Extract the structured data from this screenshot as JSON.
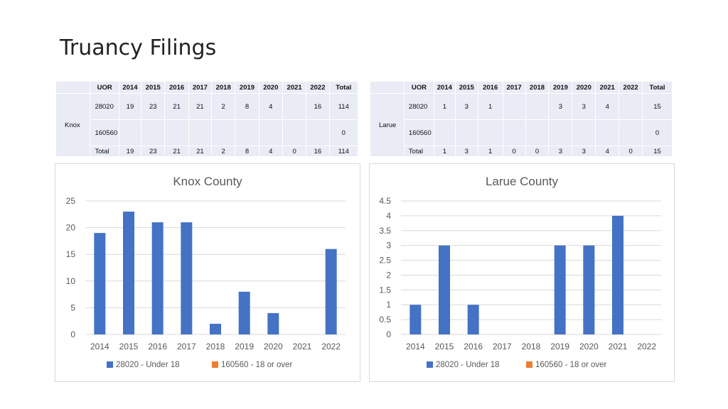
{
  "title": "Truancy Filings",
  "tables": [
    {
      "county": "Knox",
      "headers": [
        "UOR",
        "2014",
        "2015",
        "2016",
        "2017",
        "2018",
        "2019",
        "2020",
        "2021",
        "2022",
        "Total"
      ],
      "rows": [
        [
          "28020",
          "19",
          "23",
          "21",
          "21",
          "2",
          "8",
          "4",
          "",
          "16",
          "114"
        ],
        [
          "160560",
          "",
          "",
          "",
          "",
          "",
          "",
          "",
          "",
          "",
          "0"
        ],
        [
          "Total",
          "19",
          "23",
          "21",
          "21",
          "2",
          "8",
          "4",
          "0",
          "16",
          "114"
        ]
      ]
    },
    {
      "county": "Larue",
      "headers": [
        "UOR",
        "2014",
        "2015",
        "2016",
        "2017",
        "2018",
        "2019",
        "2020",
        "2021",
        "2022",
        "Total"
      ],
      "rows": [
        [
          "28020",
          "1",
          "3",
          "1",
          "",
          "",
          "3",
          "3",
          "4",
          "",
          "15"
        ],
        [
          "160560",
          "",
          "",
          "",
          "",
          "",
          "",
          "",
          "",
          "",
          "0"
        ],
        [
          "Total",
          "1",
          "3",
          "1",
          "0",
          "0",
          "3",
          "3",
          "4",
          "0",
          "15"
        ]
      ]
    }
  ],
  "chart_data": [
    {
      "type": "bar",
      "title": "Knox County",
      "categories": [
        "2014",
        "2015",
        "2016",
        "2017",
        "2018",
        "2019",
        "2020",
        "2021",
        "2022"
      ],
      "series": [
        {
          "name": "28020 - Under 18",
          "color": "#4472c4",
          "values": [
            19,
            23,
            21,
            21,
            2,
            8,
            4,
            0,
            16
          ]
        },
        {
          "name": "160560 - 18 or over",
          "color": "#ed7d31",
          "values": [
            0,
            0,
            0,
            0,
            0,
            0,
            0,
            0,
            0
          ]
        }
      ],
      "ylim": [
        0,
        25
      ],
      "yticks": [
        "0",
        "5",
        "10",
        "15",
        "20",
        "25"
      ],
      "grid": true,
      "legend": "bottom"
    },
    {
      "type": "bar",
      "title": "Larue County",
      "categories": [
        "2014",
        "2015",
        "2016",
        "2017",
        "2018",
        "2019",
        "2020",
        "2021",
        "2022"
      ],
      "series": [
        {
          "name": "28020 - Under 18",
          "color": "#4472c4",
          "values": [
            1,
            3,
            1,
            0,
            0,
            3,
            3,
            4,
            0
          ]
        },
        {
          "name": "160560 - 18 or over",
          "color": "#ed7d31",
          "values": [
            0,
            0,
            0,
            0,
            0,
            0,
            0,
            0,
            0
          ]
        }
      ],
      "ylim": [
        0,
        4.5
      ],
      "yticks": [
        "0",
        "0.5",
        "1",
        "1.5",
        "2",
        "2.5",
        "3",
        "3.5",
        "4",
        "4.5"
      ],
      "grid": true,
      "legend": "bottom"
    }
  ]
}
